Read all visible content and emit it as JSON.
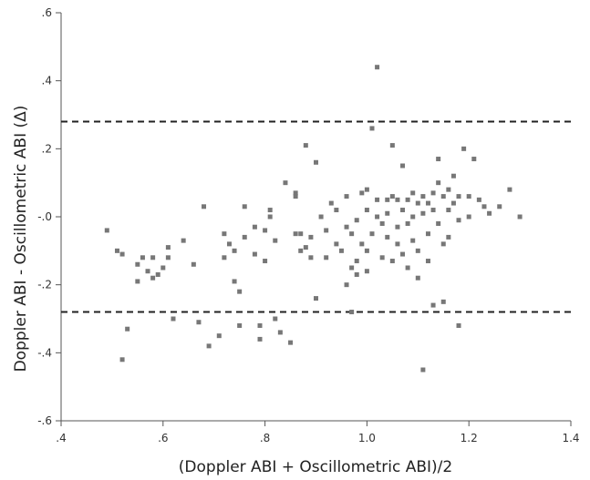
{
  "chart_data": {
    "type": "scatter",
    "title": "",
    "xlabel": "(Doppler ABI + Oscillometric ABI)/2",
    "ylabel": "Doppler ABI - Oscillometric ABI (Δ)",
    "xlim": [
      0.4,
      1.4
    ],
    "ylim": [
      -0.6,
      0.6
    ],
    "xticks": [
      0.4,
      0.6,
      0.8,
      1.0,
      1.2,
      1.4
    ],
    "xtick_labels": [
      ".4",
      ".6",
      ".8",
      "1.0",
      "1.2",
      "1.4"
    ],
    "yticks": [
      0.6,
      0.4,
      0.2,
      0.0,
      -0.2,
      -0.4,
      -0.6
    ],
    "ytick_labels": [
      ".6",
      ".4",
      ".2",
      "-.0",
      "-.2",
      "-.4",
      "-.6"
    ],
    "grid": false,
    "reference_lines": [
      0.28,
      -0.28
    ],
    "marker_color": "#777777",
    "series": [
      {
        "points": [
          [
            0.49,
            -0.04
          ],
          [
            0.51,
            -0.1
          ],
          [
            0.52,
            -0.11
          ],
          [
            0.52,
            -0.42
          ],
          [
            0.53,
            -0.33
          ],
          [
            0.55,
            -0.14
          ],
          [
            0.55,
            -0.19
          ],
          [
            0.56,
            -0.12
          ],
          [
            0.57,
            -0.16
          ],
          [
            0.58,
            -0.12
          ],
          [
            0.58,
            -0.18
          ],
          [
            0.59,
            -0.17
          ],
          [
            0.6,
            -0.15
          ],
          [
            0.61,
            -0.09
          ],
          [
            0.61,
            -0.12
          ],
          [
            0.62,
            -0.3
          ],
          [
            0.64,
            -0.07
          ],
          [
            0.66,
            -0.14
          ],
          [
            0.67,
            -0.31
          ],
          [
            0.68,
            0.03
          ],
          [
            0.69,
            -0.38
          ],
          [
            0.71,
            -0.35
          ],
          [
            0.72,
            -0.05
          ],
          [
            0.72,
            -0.12
          ],
          [
            0.73,
            -0.08
          ],
          [
            0.74,
            -0.1
          ],
          [
            0.74,
            -0.19
          ],
          [
            0.75,
            -0.22
          ],
          [
            0.75,
            -0.32
          ],
          [
            0.76,
            -0.06
          ],
          [
            0.76,
            0.03
          ],
          [
            0.78,
            -0.03
          ],
          [
            0.78,
            -0.11
          ],
          [
            0.79,
            -0.32
          ],
          [
            0.79,
            -0.36
          ],
          [
            0.8,
            -0.04
          ],
          [
            0.8,
            -0.13
          ],
          [
            0.81,
            0.0
          ],
          [
            0.81,
            0.02
          ],
          [
            0.82,
            -0.07
          ],
          [
            0.82,
            -0.3
          ],
          [
            0.83,
            -0.34
          ],
          [
            0.84,
            0.1
          ],
          [
            0.85,
            -0.37
          ],
          [
            0.86,
            0.07
          ],
          [
            0.86,
            0.06
          ],
          [
            0.86,
            -0.05
          ],
          [
            0.87,
            -0.1
          ],
          [
            0.87,
            -0.05
          ],
          [
            0.88,
            0.21
          ],
          [
            0.88,
            -0.09
          ],
          [
            0.89,
            -0.12
          ],
          [
            0.89,
            -0.06
          ],
          [
            0.9,
            0.16
          ],
          [
            0.9,
            -0.24
          ],
          [
            0.91,
            0.0
          ],
          [
            0.92,
            -0.04
          ],
          [
            0.92,
            -0.12
          ],
          [
            0.93,
            0.04
          ],
          [
            0.94,
            0.02
          ],
          [
            0.94,
            -0.08
          ],
          [
            0.95,
            -0.1
          ],
          [
            0.96,
            0.06
          ],
          [
            0.96,
            -0.03
          ],
          [
            0.96,
            -0.2
          ],
          [
            0.97,
            -0.05
          ],
          [
            0.97,
            -0.15
          ],
          [
            0.97,
            -0.28
          ],
          [
            0.98,
            -0.01
          ],
          [
            0.98,
            -0.13
          ],
          [
            0.98,
            -0.17
          ],
          [
            0.99,
            0.07
          ],
          [
            0.99,
            -0.08
          ],
          [
            1.0,
            0.02
          ],
          [
            1.0,
            0.08
          ],
          [
            1.0,
            -0.1
          ],
          [
            1.0,
            -0.16
          ],
          [
            1.01,
            0.26
          ],
          [
            1.01,
            -0.05
          ],
          [
            1.02,
            0.44
          ],
          [
            1.02,
            0.0
          ],
          [
            1.02,
            0.05
          ],
          [
            1.03,
            -0.02
          ],
          [
            1.03,
            -0.12
          ],
          [
            1.04,
            0.01
          ],
          [
            1.04,
            0.05
          ],
          [
            1.04,
            -0.06
          ],
          [
            1.05,
            0.06
          ],
          [
            1.05,
            -0.13
          ],
          [
            1.05,
            0.21
          ],
          [
            1.06,
            0.05
          ],
          [
            1.06,
            -0.03
          ],
          [
            1.06,
            -0.08
          ],
          [
            1.07,
            0.15
          ],
          [
            1.07,
            0.02
          ],
          [
            1.07,
            -0.11
          ],
          [
            1.08,
            0.05
          ],
          [
            1.08,
            -0.02
          ],
          [
            1.08,
            -0.15
          ],
          [
            1.09,
            0.07
          ],
          [
            1.09,
            0.0
          ],
          [
            1.09,
            -0.07
          ],
          [
            1.1,
            0.04
          ],
          [
            1.1,
            -0.1
          ],
          [
            1.1,
            -0.18
          ],
          [
            1.11,
            0.06
          ],
          [
            1.11,
            0.01
          ],
          [
            1.11,
            -0.45
          ],
          [
            1.12,
            0.04
          ],
          [
            1.12,
            -0.05
          ],
          [
            1.12,
            -0.13
          ],
          [
            1.13,
            0.07
          ],
          [
            1.13,
            0.02
          ],
          [
            1.13,
            -0.26
          ],
          [
            1.14,
            0.17
          ],
          [
            1.14,
            0.1
          ],
          [
            1.14,
            -0.02
          ],
          [
            1.15,
            0.06
          ],
          [
            1.15,
            -0.08
          ],
          [
            1.15,
            -0.25
          ],
          [
            1.16,
            0.08
          ],
          [
            1.16,
            0.02
          ],
          [
            1.16,
            -0.06
          ],
          [
            1.17,
            0.12
          ],
          [
            1.17,
            0.04
          ],
          [
            1.18,
            0.06
          ],
          [
            1.18,
            -0.01
          ],
          [
            1.18,
            -0.32
          ],
          [
            1.19,
            0.2
          ],
          [
            1.2,
            0.06
          ],
          [
            1.2,
            0.0
          ],
          [
            1.21,
            0.17
          ],
          [
            1.22,
            0.05
          ],
          [
            1.23,
            0.03
          ],
          [
            1.24,
            0.01
          ],
          [
            1.26,
            0.03
          ],
          [
            1.28,
            0.08
          ],
          [
            1.3,
            0.0
          ]
        ]
      }
    ]
  }
}
